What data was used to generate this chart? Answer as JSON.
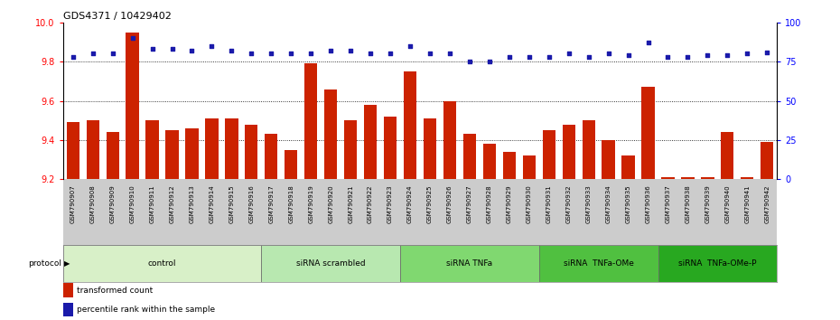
{
  "title": "GDS4371 / 10429402",
  "samples": [
    "GSM790907",
    "GSM790908",
    "GSM790909",
    "GSM790910",
    "GSM790911",
    "GSM790912",
    "GSM790913",
    "GSM790914",
    "GSM790915",
    "GSM790916",
    "GSM790917",
    "GSM790918",
    "GSM790919",
    "GSM790920",
    "GSM790921",
    "GSM790922",
    "GSM790923",
    "GSM790924",
    "GSM790925",
    "GSM790926",
    "GSM790927",
    "GSM790928",
    "GSM790929",
    "GSM790930",
    "GSM790931",
    "GSM790932",
    "GSM790933",
    "GSM790934",
    "GSM790935",
    "GSM790936",
    "GSM790937",
    "GSM790938",
    "GSM790939",
    "GSM790940",
    "GSM790941",
    "GSM790942"
  ],
  "bar_values": [
    9.49,
    9.5,
    9.44,
    9.95,
    9.5,
    9.45,
    9.46,
    9.51,
    9.51,
    9.48,
    9.43,
    9.35,
    9.79,
    9.66,
    9.5,
    9.58,
    9.52,
    9.75,
    9.51,
    9.6,
    9.43,
    9.38,
    9.34,
    9.32,
    9.45,
    9.48,
    9.5,
    9.4,
    9.32,
    9.67,
    9.21,
    9.21,
    9.21,
    9.44,
    9.21,
    9.39
  ],
  "dot_values": [
    78,
    80,
    80,
    90,
    83,
    83,
    82,
    85,
    82,
    80,
    80,
    80,
    80,
    82,
    82,
    80,
    80,
    85,
    80,
    80,
    75,
    75,
    78,
    78,
    78,
    80,
    78,
    80,
    79,
    87,
    78,
    78,
    79,
    79,
    80,
    81
  ],
  "groups": [
    {
      "label": "control",
      "start": 0,
      "end": 10,
      "color": "#d8f0c8"
    },
    {
      "label": "siRNA scrambled",
      "start": 10,
      "end": 17,
      "color": "#b8e8b0"
    },
    {
      "label": "siRNA TNFa",
      "start": 17,
      "end": 24,
      "color": "#80d870"
    },
    {
      "label": "siRNA  TNFa-OMe",
      "start": 24,
      "end": 30,
      "color": "#50c040"
    },
    {
      "label": "siRNA  TNFa-OMe-P",
      "start": 30,
      "end": 36,
      "color": "#28a820"
    }
  ],
  "ylim_left": [
    9.2,
    10.0
  ],
  "ylim_right": [
    0,
    100
  ],
  "bar_color": "#cc2200",
  "dot_color": "#1a1aaa",
  "bar_width": 0.65,
  "yticks_left": [
    9.2,
    9.4,
    9.6,
    9.8,
    10.0
  ],
  "yticks_right": [
    0,
    25,
    50,
    75,
    100
  ],
  "grid_pcts": [
    25,
    50,
    75
  ],
  "legend_bar_label": "transformed count",
  "legend_dot_label": "percentile rank within the sample",
  "xtick_bg_color": "#cccccc",
  "protocol_label": "protocol"
}
